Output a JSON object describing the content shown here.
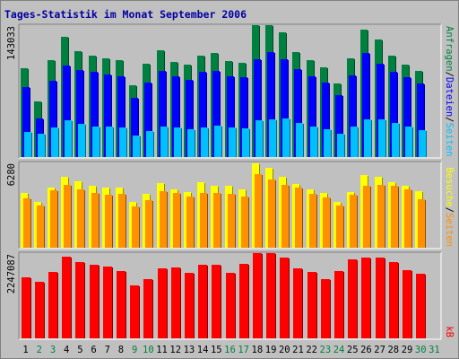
{
  "chart_data": {
    "type": "bar",
    "title": "Tages-Statistik im Monat September 2006",
    "colors": {
      "title": "#0000a0",
      "anfragen": "#008040",
      "dateien": "#0000ff",
      "seiten_top": "#00c0ff",
      "besuche": "#ffff00",
      "seiten_mid": "#ff9000",
      "kb": "#ff0000",
      "weekend_label": "#008040",
      "label_text": "#000000",
      "panel_bg": "#c0c0c0"
    },
    "categories": [
      "1",
      "2",
      "3",
      "4",
      "5",
      "6",
      "7",
      "8",
      "9",
      "10",
      "11",
      "12",
      "13",
      "14",
      "15",
      "16",
      "17",
      "18",
      "19",
      "20",
      "21",
      "22",
      "23",
      "24",
      "25",
      "26",
      "27",
      "28",
      "29",
      "30",
      "31"
    ],
    "weekend_days": [
      "2",
      "3",
      "9",
      "10",
      "16",
      "17",
      "23",
      "24",
      "30",
      "31"
    ],
    "panels": [
      {
        "id": "top",
        "max_label": "143033",
        "ymax": 143033,
        "series_labels": [
          {
            "text": "Seiten",
            "color": "#00c0ff"
          },
          {
            "text": "Dateien",
            "color": "#0000ff"
          },
          {
            "text": "Anfragen",
            "color": "#008040"
          }
        ],
        "series": [
          {
            "name": "Anfragen",
            "color": "#008040",
            "values": [
              96000,
              60000,
              105000,
              130000,
              115000,
              110000,
              107000,
              105000,
              78000,
              101000,
              116000,
              103000,
              100000,
              110000,
              113000,
              104000,
              102000,
              143000,
              143000,
              135000,
              114000,
              105000,
              97000,
              80000,
              107000,
              138000,
              127000,
              110000,
              100000,
              93000,
              null
            ]
          },
          {
            "name": "Dateien",
            "color": "#0000ff",
            "values": [
              76000,
              42000,
              83000,
              99000,
              94000,
              92000,
              90000,
              88000,
              64000,
              81000,
              93000,
              88000,
              84000,
              92000,
              93000,
              88000,
              87000,
              106000,
              114000,
              106000,
              95000,
              88000,
              81000,
              67000,
              89000,
              113000,
              101000,
              92000,
              87000,
              80000,
              null
            ]
          },
          {
            "name": "Seiten",
            "color": "#00c0ff",
            "values": [
              27000,
              25000,
              32000,
              40000,
              36000,
              33000,
              33000,
              32000,
              23000,
              28000,
              33000,
              32000,
              30000,
              32000,
              34000,
              32000,
              31000,
              40000,
              41000,
              42000,
              37000,
              33000,
              30000,
              25000,
              33000,
              41000,
              41000,
              37000,
              33000,
              29000,
              null
            ]
          }
        ]
      },
      {
        "id": "mid",
        "max_label": "6280",
        "ymax": 6280,
        "series_labels": [
          {
            "text": "Seiten",
            "color": "#ff9000"
          },
          {
            "text": "Besuche",
            "color": "#ffff00"
          }
        ],
        "series": [
          {
            "name": "Besuche",
            "color": "#ffff00",
            "values": [
              4050,
              3350,
              4450,
              5250,
              4900,
              4550,
              4400,
              4400,
              3350,
              3950,
              4750,
              4300,
              4100,
              4800,
              4550,
              4550,
              4300,
              6230,
              5900,
              5200,
              4700,
              4300,
              4050,
              3350,
              4100,
              5350,
              5250,
              4850,
              4550,
              4150,
              null
            ]
          },
          {
            "name": "Seiten",
            "color": "#ff9000",
            "values": [
              3650,
              3100,
              4250,
              4650,
              4300,
              4000,
              3900,
              3950,
              3050,
              3500,
              4150,
              4000,
              3800,
              4050,
              4000,
              3950,
              3750,
              5400,
              5050,
              4650,
              4450,
              3950,
              3700,
              3100,
              3900,
              4550,
              4650,
              4550,
              4300,
              3600,
              null
            ]
          }
        ]
      },
      {
        "id": "bot",
        "max_label": "2247087",
        "ymax": 2247087,
        "series_labels": [
          {
            "text": "kB",
            "color": "#ff0000"
          }
        ],
        "series": [
          {
            "name": "kB",
            "color": "#ff0000",
            "values": [
              1620000,
              1490000,
              1760000,
              2150000,
              2010000,
              1950000,
              1890000,
              1780000,
              1400000,
              1550000,
              1850000,
              1860000,
              1730000,
              1950000,
              1940000,
              1730000,
              1960000,
              2247087,
              2240000,
              2120000,
              1840000,
              1740000,
              1550000,
              1770000,
              2080000,
              2130000,
              2130000,
              2000000,
              1790000,
              1700000,
              null
            ]
          }
        ]
      }
    ]
  }
}
